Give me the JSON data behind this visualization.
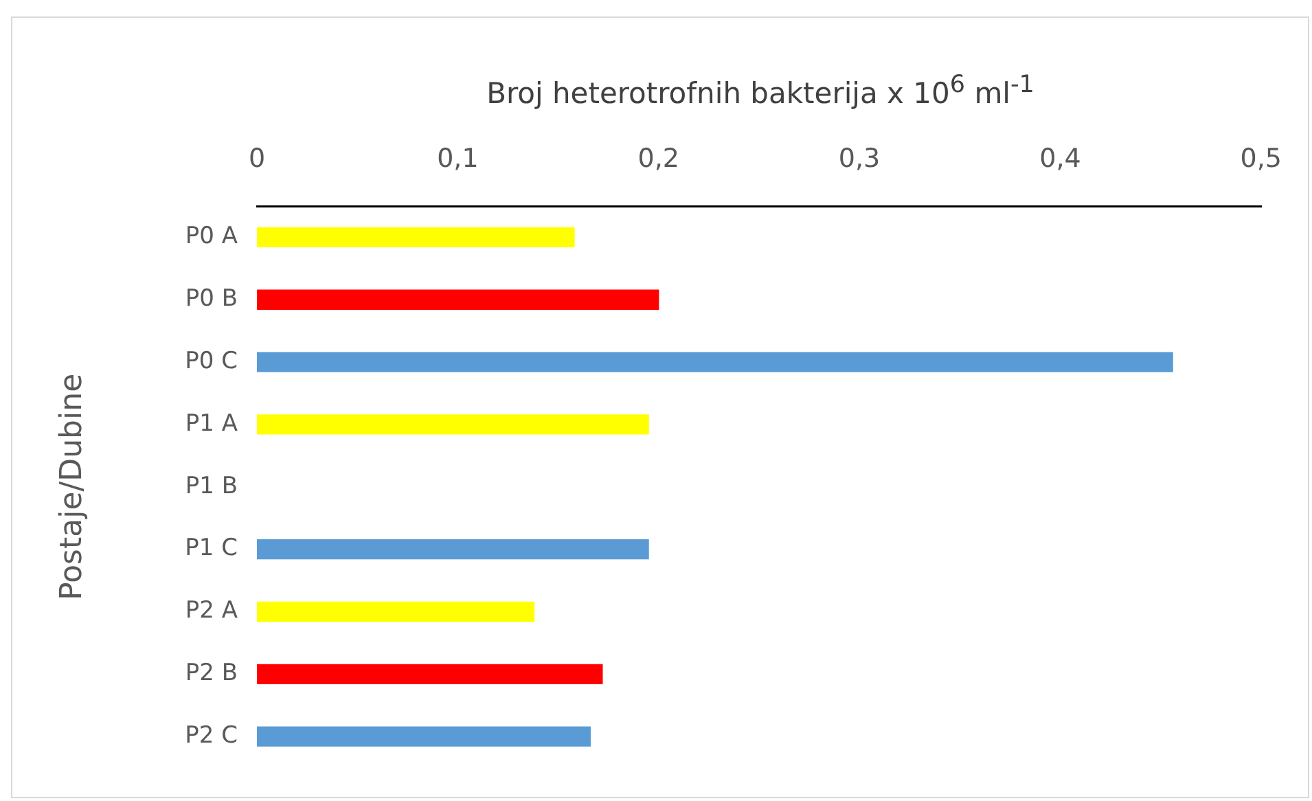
{
  "chart_data": {
    "type": "bar",
    "orientation": "horizontal",
    "xlabel": "Broj heterotrofnih bakterija x 10$^{6}$ ml$^{-1}$",
    "ylabel": "Postaje/Dubine",
    "categories": [
      "P0 A",
      "P0 B",
      "P0 C",
      "P1 A",
      "P1 B",
      "P1 C",
      "P2 A",
      "P2 B",
      "P2 C"
    ],
    "values": [
      0.158,
      0.2,
      0.456,
      0.195,
      null,
      0.195,
      0.138,
      0.172,
      0.166
    ],
    "colors": [
      "#ffff00",
      "#ff0000",
      "#5b9bd5",
      "#ffff00",
      "#ff0000",
      "#5b9bd5",
      "#ffff00",
      "#ff0000",
      "#5b9bd5"
    ],
    "xlim": [
      0,
      0.5
    ],
    "xticks": [
      0,
      {
        "value": 0.1,
        "label": "0,1"
      },
      {
        "value": 0.2,
        "label": "0,2"
      },
      {
        "value": 0.3,
        "label": "0,3"
      },
      {
        "value": 0.4,
        "label": "0,4"
      },
      {
        "value": 0.5,
        "label": "0,5"
      }
    ],
    "grid": false,
    "legend": false
  }
}
